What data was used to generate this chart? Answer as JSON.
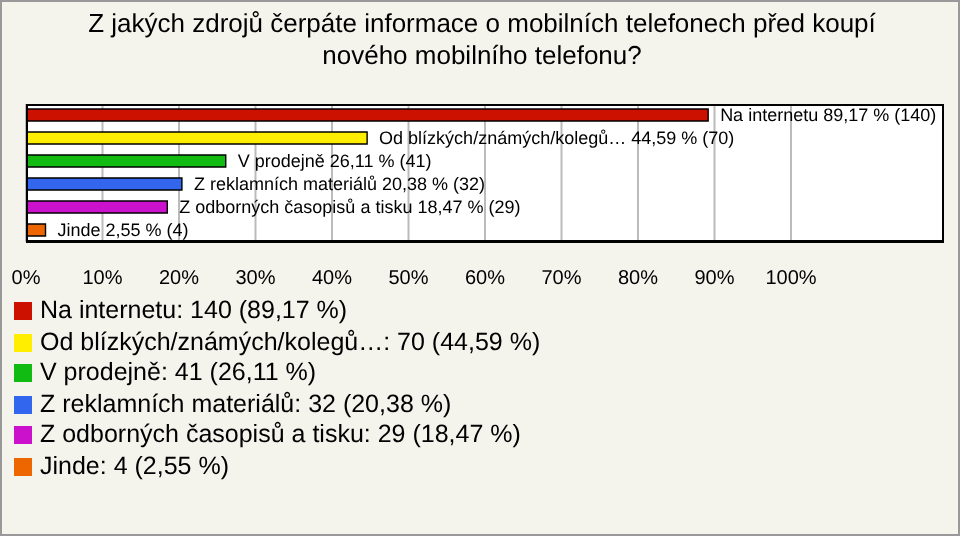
{
  "chart_data": {
    "type": "bar",
    "orientation": "horizontal",
    "stacked": true,
    "title": "Z jakých zdrojů čerpáte informace o mobilních telefonech před koupí nového mobilního telefonu?",
    "categories": [
      "Na internetu",
      "Od blízkých/známých/kolegů…",
      "V prodejně",
      "Z reklamních materiálů",
      "Z odborných časopisů a tisku",
      "Jinde"
    ],
    "series": [
      {
        "name": "Na internetu: 140 (89,17 %)",
        "color": "#cc1100",
        "values": [
          89.17,
          null,
          null,
          null,
          null,
          null
        ],
        "value_labels": [
          "89,17 % (140)",
          null,
          null,
          null,
          null,
          null
        ]
      },
      {
        "name": "Od blízkých/známých/kolegů…: 70 (44,59 %)",
        "color": "#ffee00",
        "values": [
          null,
          44.59,
          null,
          null,
          null,
          null
        ],
        "value_labels": [
          null,
          "44,59 % (70)",
          null,
          null,
          null,
          null
        ]
      },
      {
        "name": "V prodejně: 41 (26,11 %)",
        "color": "#11bb11",
        "values": [
          null,
          null,
          26.11,
          null,
          null,
          null
        ],
        "value_labels": [
          null,
          null,
          "26,11 % (41)",
          null,
          null,
          null
        ]
      },
      {
        "name": "Z reklamních materiálů: 32 (20,38 %)",
        "color": "#3366ee",
        "values": [
          null,
          null,
          null,
          20.38,
          null,
          null
        ],
        "value_labels": [
          null,
          null,
          null,
          "20,38 % (32)",
          null,
          null
        ]
      },
      {
        "name": "Z odborných časopisů a tisku: 29 (18,47 %)",
        "color": "#cc11cc",
        "values": [
          null,
          null,
          null,
          null,
          18.47,
          null
        ],
        "value_labels": [
          null,
          null,
          null,
          null,
          "18,47 % (29)",
          null
        ]
      },
      {
        "name": "Jinde: 4 (2,55 %)",
        "color": "#ee6600",
        "values": [
          null,
          null,
          null,
          null,
          null,
          2.55
        ],
        "value_labels": [
          null,
          null,
          null,
          null,
          null,
          "2,55 % (4)"
        ]
      }
    ],
    "xlim": [
      0,
      120
    ],
    "xticks": [
      {
        "value": 0,
        "label": "0%"
      },
      {
        "value": 10,
        "label": "10%"
      },
      {
        "value": 20,
        "label": "20%"
      },
      {
        "value": 30,
        "label": "30%"
      },
      {
        "value": 40,
        "label": "40%"
      },
      {
        "value": 50,
        "label": "50%"
      },
      {
        "value": 60,
        "label": "60%"
      },
      {
        "value": 70,
        "label": "70%"
      },
      {
        "value": 80,
        "label": "80%"
      },
      {
        "value": 90,
        "label": "90%"
      },
      {
        "value": 100,
        "label": "100%"
      }
    ],
    "grid": "x",
    "legend": "bottom left",
    "tick_labels": "x"
  }
}
